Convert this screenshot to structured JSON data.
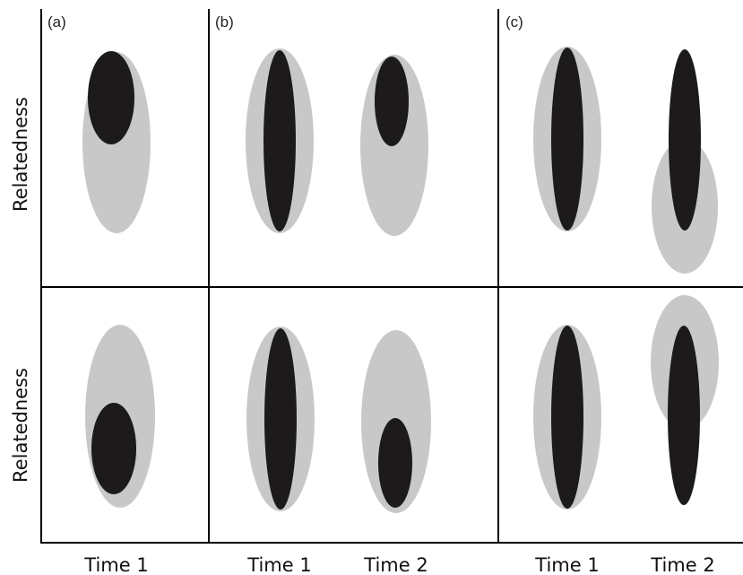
{
  "panels": [
    {
      "label": "(a)"
    },
    {
      "label": "(b)"
    },
    {
      "label": "(c)"
    }
  ],
  "y_axis_label": "Relatedness",
  "x_tick_labels": [
    "Time 1",
    "Time 1",
    "Time 2",
    "Time 1",
    "Time 2"
  ],
  "colors": {
    "outer": "#c8c8c8",
    "inner": "#1c1a1b",
    "axis": "#000000"
  }
}
